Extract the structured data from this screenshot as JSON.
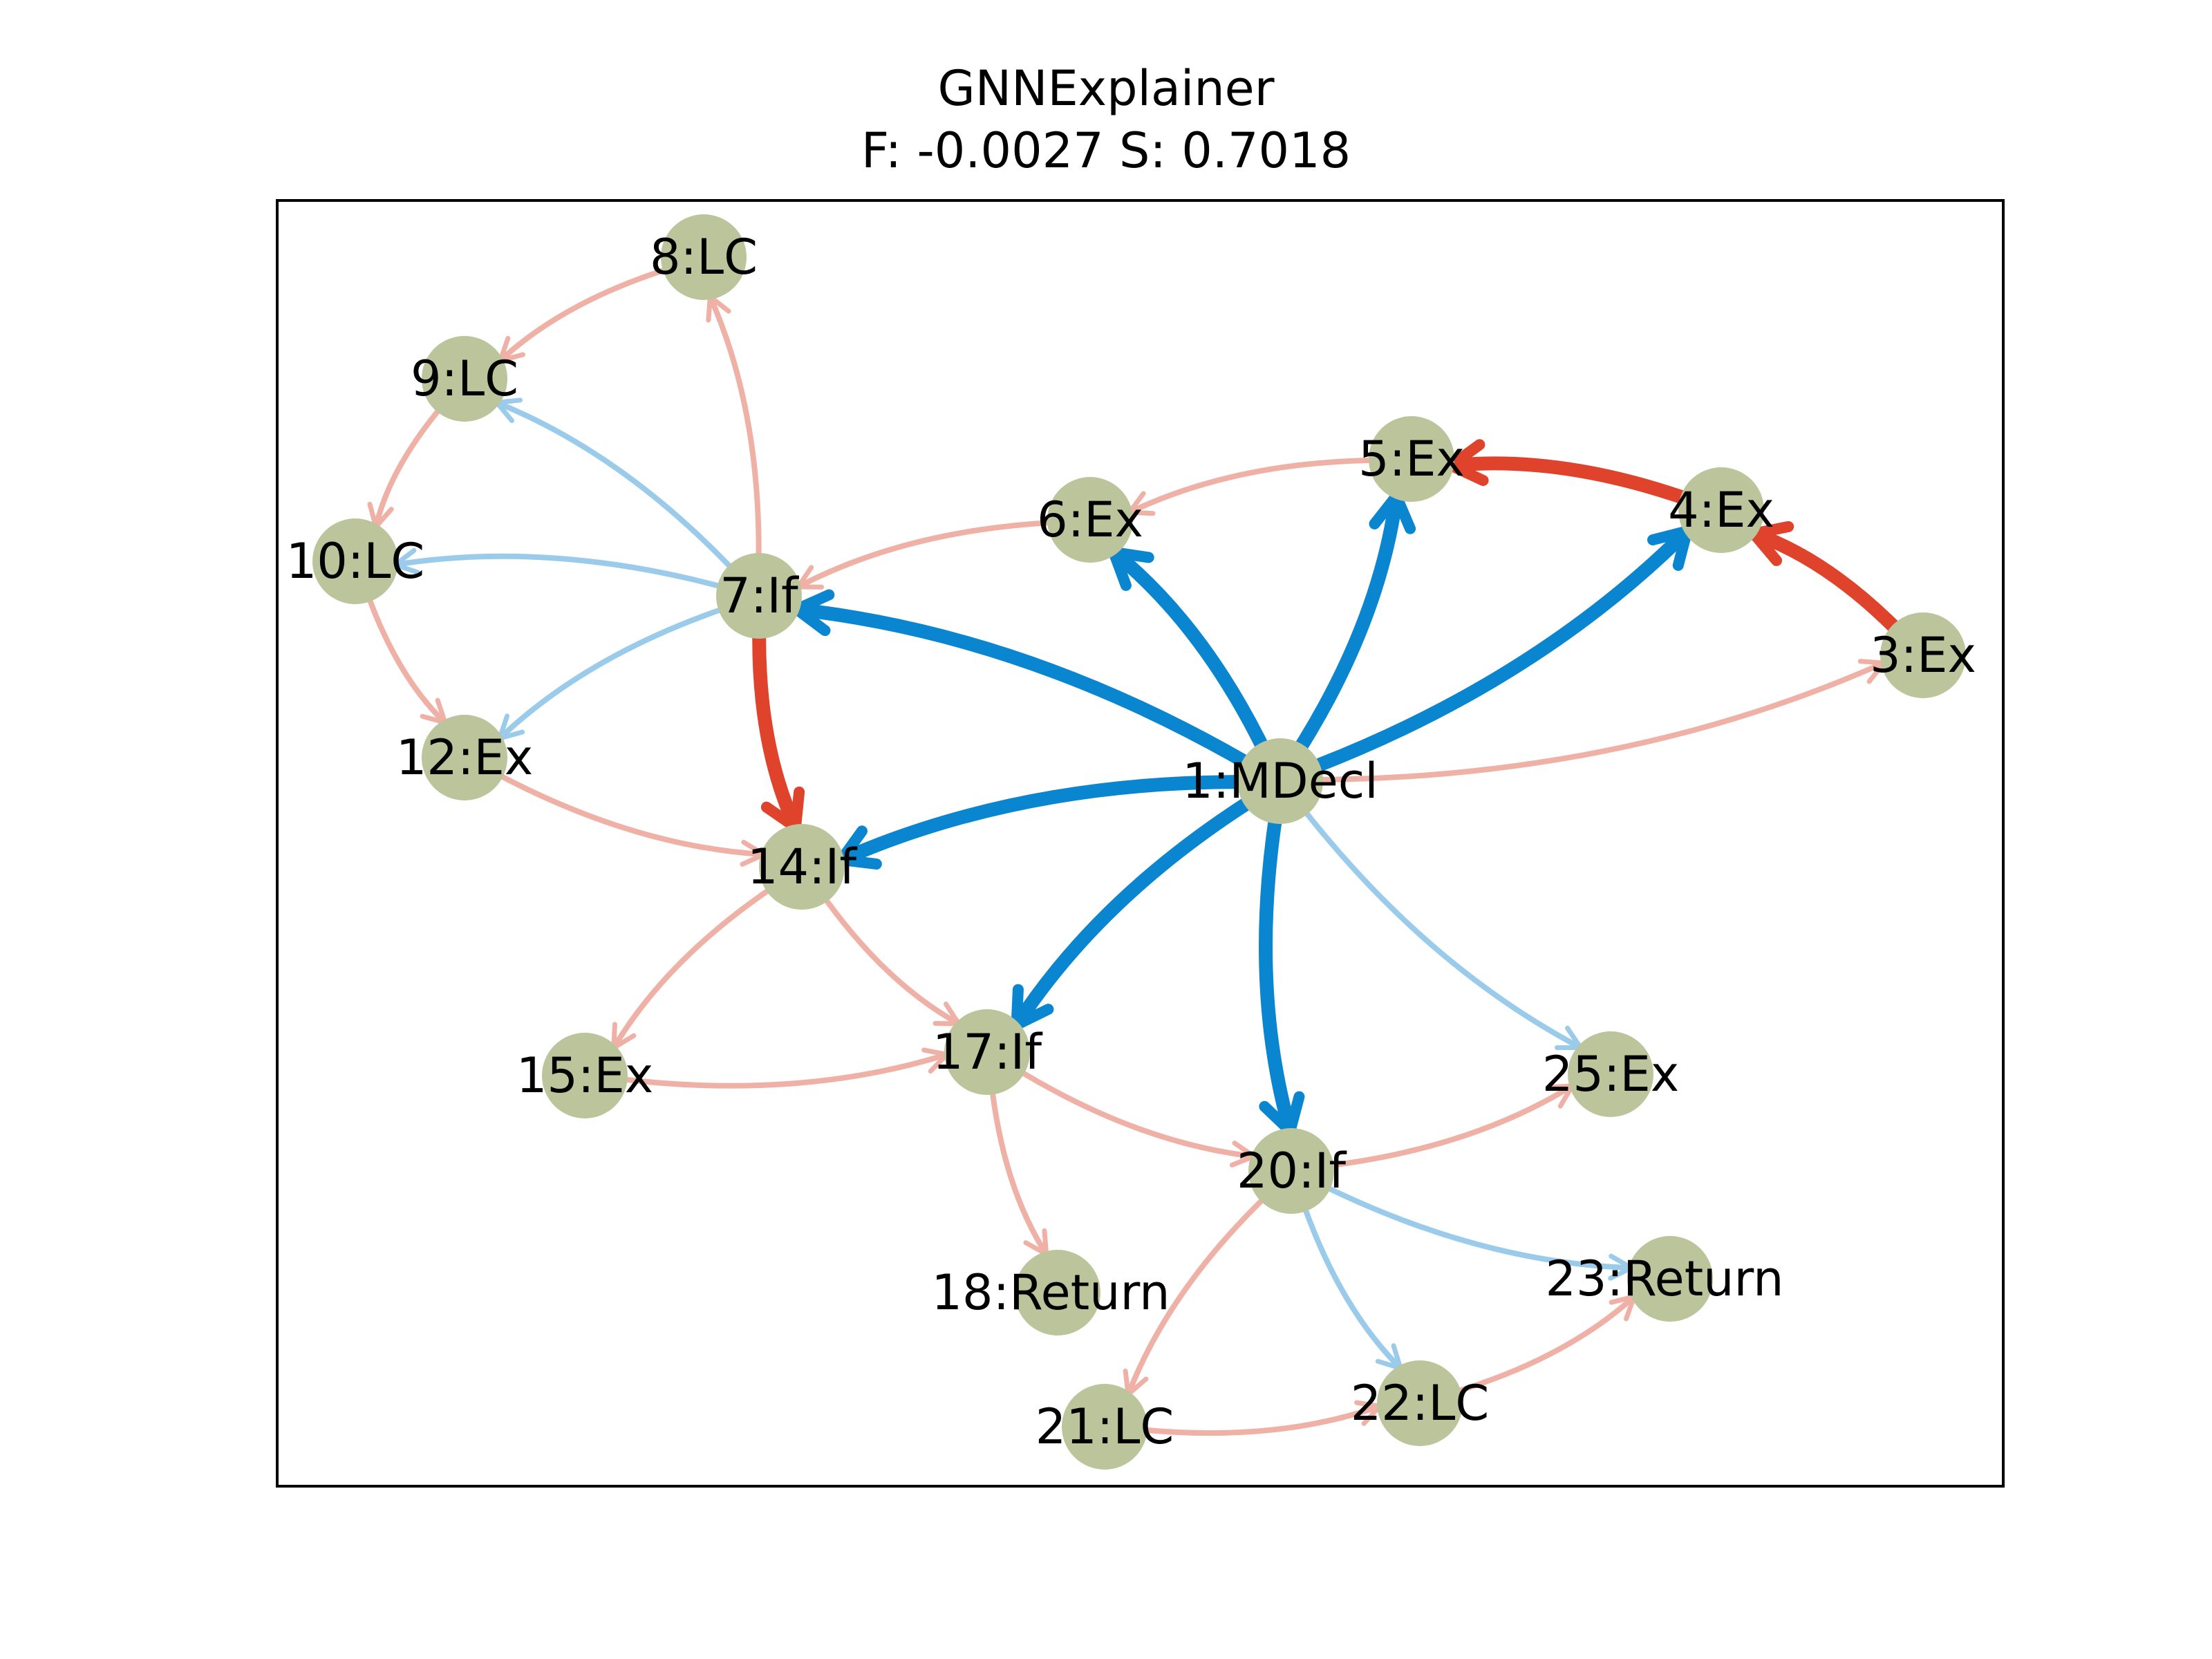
{
  "title": "GNNExplainer",
  "subtitle": "F: -0.0027  S: 0.7018",
  "colors": {
    "node": "#bcc49c",
    "edge_strong_blue": "#0a85d0",
    "edge_weak_blue": "#9bcbea",
    "edge_strong_red": "#e0432c",
    "edge_weak_red": "#efb0a6",
    "frame": "#000000"
  },
  "nodes": [
    {
      "id": "1",
      "label": "1:MDecl"
    },
    {
      "id": "3",
      "label": "3:Ex"
    },
    {
      "id": "4",
      "label": "4:Ex"
    },
    {
      "id": "5",
      "label": "5:Ex"
    },
    {
      "id": "6",
      "label": "6:Ex"
    },
    {
      "id": "7",
      "label": "7:If"
    },
    {
      "id": "8",
      "label": "8:LC"
    },
    {
      "id": "9",
      "label": "9:LC"
    },
    {
      "id": "10",
      "label": "10:LC"
    },
    {
      "id": "12",
      "label": "12:Ex"
    },
    {
      "id": "14",
      "label": "14:If"
    },
    {
      "id": "15",
      "label": "15:Ex"
    },
    {
      "id": "17",
      "label": "17:If"
    },
    {
      "id": "18",
      "label": "18:Return"
    },
    {
      "id": "20",
      "label": "20:If"
    },
    {
      "id": "21",
      "label": "21:LC"
    },
    {
      "id": "22",
      "label": "22:LC"
    },
    {
      "id": "23",
      "label": "23:Return"
    },
    {
      "id": "25",
      "label": "25:Ex"
    }
  ],
  "edges": [
    {
      "source": "1",
      "target": "7",
      "type": "blue",
      "strength": "strong"
    },
    {
      "source": "1",
      "target": "6",
      "type": "blue",
      "strength": "strong"
    },
    {
      "source": "1",
      "target": "5",
      "type": "blue",
      "strength": "strong"
    },
    {
      "source": "1",
      "target": "4",
      "type": "blue",
      "strength": "strong"
    },
    {
      "source": "1",
      "target": "14",
      "type": "blue",
      "strength": "strong"
    },
    {
      "source": "1",
      "target": "17",
      "type": "blue",
      "strength": "strong"
    },
    {
      "source": "1",
      "target": "20",
      "type": "blue",
      "strength": "strong"
    },
    {
      "source": "1",
      "target": "25",
      "type": "blue",
      "strength": "weak"
    },
    {
      "source": "1",
      "target": "3",
      "type": "red",
      "strength": "weak"
    },
    {
      "source": "3",
      "target": "4",
      "type": "red",
      "strength": "strong"
    },
    {
      "source": "4",
      "target": "5",
      "type": "red",
      "strength": "strong"
    },
    {
      "source": "5",
      "target": "6",
      "type": "red",
      "strength": "weak"
    },
    {
      "source": "6",
      "target": "7",
      "type": "red",
      "strength": "weak"
    },
    {
      "source": "7",
      "target": "8",
      "type": "red",
      "strength": "weak"
    },
    {
      "source": "7",
      "target": "9",
      "type": "blue",
      "strength": "weak"
    },
    {
      "source": "7",
      "target": "10",
      "type": "blue",
      "strength": "weak"
    },
    {
      "source": "7",
      "target": "12",
      "type": "blue",
      "strength": "weak"
    },
    {
      "source": "7",
      "target": "14",
      "type": "red",
      "strength": "strong"
    },
    {
      "source": "8",
      "target": "9",
      "type": "red",
      "strength": "weak"
    },
    {
      "source": "9",
      "target": "10",
      "type": "red",
      "strength": "weak"
    },
    {
      "source": "10",
      "target": "12",
      "type": "red",
      "strength": "weak"
    },
    {
      "source": "12",
      "target": "14",
      "type": "red",
      "strength": "weak"
    },
    {
      "source": "14",
      "target": "15",
      "type": "red",
      "strength": "weak"
    },
    {
      "source": "14",
      "target": "17",
      "type": "red",
      "strength": "weak"
    },
    {
      "source": "15",
      "target": "17",
      "type": "red",
      "strength": "weak"
    },
    {
      "source": "17",
      "target": "18",
      "type": "red",
      "strength": "weak"
    },
    {
      "source": "17",
      "target": "20",
      "type": "red",
      "strength": "weak"
    },
    {
      "source": "20",
      "target": "21",
      "type": "red",
      "strength": "weak"
    },
    {
      "source": "20",
      "target": "22",
      "type": "blue",
      "strength": "weak"
    },
    {
      "source": "20",
      "target": "23",
      "type": "blue",
      "strength": "weak"
    },
    {
      "source": "20",
      "target": "25",
      "type": "red",
      "strength": "weak"
    },
    {
      "source": "21",
      "target": "22",
      "type": "red",
      "strength": "weak"
    },
    {
      "source": "22",
      "target": "23",
      "type": "red",
      "strength": "weak"
    }
  ]
}
